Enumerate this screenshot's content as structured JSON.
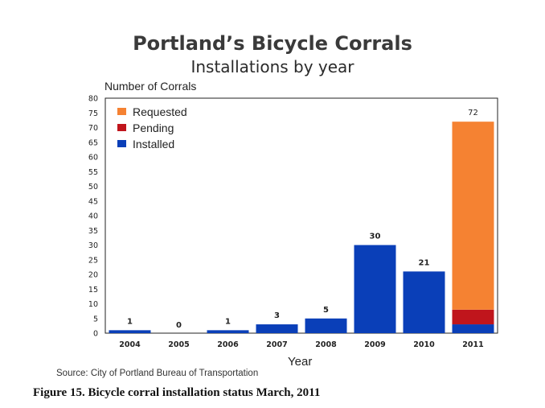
{
  "chart_data": {
    "type": "bar",
    "title": "Portland’s Bicycle Corrals",
    "subtitle": "Installations by year",
    "ylabel": "Number of Corrals",
    "xlabel": "Year",
    "categories": [
      "2004",
      "2005",
      "2006",
      "2007",
      "2008",
      "2009",
      "2010",
      "2011"
    ],
    "series": [
      {
        "name": "Installed",
        "color": "#0a3fb8",
        "values": [
          1,
          0,
          1,
          3,
          5,
          30,
          21,
          3
        ]
      },
      {
        "name": "Pending",
        "color": "#c0151c",
        "values": [
          0,
          0,
          0,
          0,
          0,
          0,
          0,
          5
        ]
      },
      {
        "name": "Requested",
        "color": "#f58232",
        "values": [
          0,
          0,
          0,
          0,
          0,
          0,
          0,
          64
        ]
      }
    ],
    "data_labels": [
      "1",
      "0",
      "1",
      "3",
      "5",
      "30",
      "21",
      "72"
    ],
    "ylim": [
      0,
      80
    ],
    "yticks": [
      0,
      5,
      10,
      15,
      20,
      25,
      30,
      35,
      40,
      45,
      50,
      55,
      60,
      65,
      70,
      75,
      80
    ],
    "stacked": true,
    "grid": false,
    "legend": {
      "position": "top-left",
      "entries": [
        "Requested",
        "Pending",
        "Installed"
      ]
    },
    "source": "Source: City of Portland Bureau of Transportation"
  },
  "caption": "Figure 15. Bicycle corral installation status March, 2011"
}
